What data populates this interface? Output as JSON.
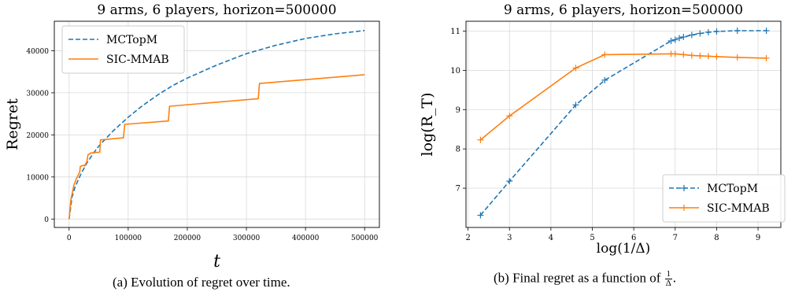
{
  "chart_data": [
    {
      "type": "line",
      "title": "9 arms, 6 players, horizon=500000",
      "xlabel": "t",
      "ylabel": "Regret",
      "xlim": [
        -25000,
        525000
      ],
      "ylim": [
        -2000,
        47000
      ],
      "xticks": [
        0,
        100000,
        200000,
        300000,
        400000,
        500000
      ],
      "yticks": [
        0,
        10000,
        20000,
        30000,
        40000
      ],
      "grid": true,
      "legend_position": "top-left",
      "series": [
        {
          "name": "MCTopM",
          "color": "#1f77b4",
          "style": "dashed",
          "x": [
            0,
            5000,
            10000,
            20000,
            30000,
            40000,
            50000,
            75000,
            100000,
            125000,
            150000,
            175000,
            200000,
            250000,
            300000,
            350000,
            400000,
            450000,
            500000
          ],
          "y": [
            0,
            5200,
            7600,
            10700,
            13300,
            15400,
            17300,
            21000,
            24200,
            27000,
            29500,
            31700,
            33500,
            36600,
            39300,
            41300,
            42900,
            44000,
            44800
          ]
        },
        {
          "name": "SIC-MMAB",
          "color": "#ff7f0e",
          "style": "solid",
          "x": [
            0,
            3000,
            8000,
            12000,
            15000,
            18000,
            19000,
            25000,
            26000,
            30000,
            32000,
            35000,
            36000,
            52000,
            53000,
            92000,
            94000,
            168000,
            170000,
            320000,
            322000,
            500000
          ],
          "y": [
            0,
            4500,
            8000,
            9500,
            10300,
            11200,
            12500,
            12800,
            12600,
            13600,
            15300,
            15500,
            15700,
            15900,
            18800,
            19300,
            22500,
            23300,
            26800,
            28600,
            32200,
            34300
          ]
        }
      ]
    },
    {
      "type": "line",
      "title": "9 arms, 6 players, horizon=500000",
      "xlabel": "log(1/Δ)",
      "ylabel": "log(R_T)",
      "xlim": [
        1.95,
        9.55
      ],
      "ylim": [
        6.0,
        11.25
      ],
      "xticks": [
        2,
        3,
        4,
        5,
        6,
        7,
        8,
        9
      ],
      "yticks": [
        7,
        8,
        9,
        10,
        11
      ],
      "grid": true,
      "legend_position": "bottom-right",
      "series": [
        {
          "name": "MCTopM",
          "color": "#1f77b4",
          "style": "dashed",
          "marker": "+",
          "x": [
            2.3,
            3.0,
            4.6,
            5.3,
            6.9,
            7.0,
            7.1,
            7.2,
            7.4,
            7.6,
            7.8,
            8.0,
            8.5,
            9.2
          ],
          "y": [
            6.31,
            7.18,
            9.12,
            9.75,
            10.75,
            10.78,
            10.82,
            10.85,
            10.9,
            10.94,
            10.97,
            10.99,
            11.01,
            11.01
          ]
        },
        {
          "name": "SIC-MMAB",
          "color": "#ff7f0e",
          "style": "solid",
          "marker": "+",
          "x": [
            2.3,
            3.0,
            4.6,
            5.3,
            6.9,
            7.0,
            7.2,
            7.4,
            7.6,
            7.8,
            8.0,
            8.5,
            9.2
          ],
          "y": [
            8.23,
            8.84,
            10.06,
            10.4,
            10.42,
            10.42,
            10.4,
            10.38,
            10.37,
            10.36,
            10.35,
            10.33,
            10.31
          ]
        }
      ]
    }
  ],
  "captions": {
    "a": "(a) Evolution of regret over time.",
    "b_prefix": "(b) Final regret as a function of",
    "b_num": "1",
    "b_den": "Δ",
    "b_suffix": "."
  }
}
